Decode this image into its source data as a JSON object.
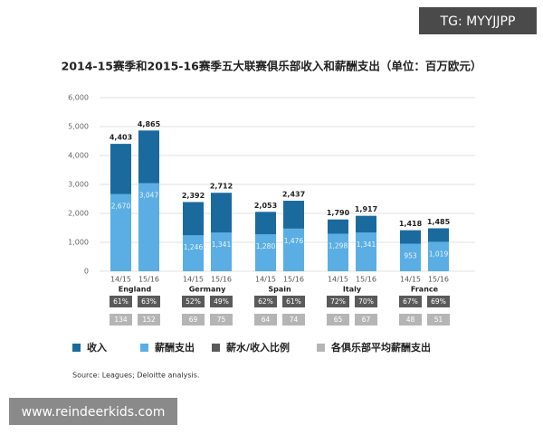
{
  "chart_data": {
    "type": "bar",
    "title": "2014-15赛季和2015-16赛季五大联赛俱乐部收入和薪酬支出（单位：百万欧元）",
    "categories": [
      "14/15",
      "15/16",
      "14/15",
      "15/16",
      "14/15",
      "15/16",
      "14/15",
      "15/16",
      "14/15",
      "15/16"
    ],
    "groups": [
      "England",
      "Germany",
      "Spain",
      "Italy",
      "France"
    ],
    "series": [
      {
        "name": "收入",
        "color": "#1b6a9e",
        "type": "bar",
        "values": [
          4403,
          4865,
          2392,
          2712,
          2053,
          2437,
          1790,
          1917,
          1418,
          1485
        ],
        "value_labels": [
          "4,403",
          "4,865",
          "2,392",
          "2,712",
          "2,053",
          "2,437",
          "1,790",
          "1,917",
          "1,418",
          "1,485"
        ]
      },
      {
        "name": "薪酬支出",
        "color": "#5aaee3",
        "type": "bar",
        "values": [
          2670,
          3047,
          1246,
          1341,
          1280,
          1476,
          1298,
          1341,
          953,
          1019
        ],
        "value_labels": [
          "2,670",
          "3,047",
          "1,246",
          "1,341",
          "1,280",
          "1,476",
          "1,298",
          "1,341",
          "953",
          "1,019"
        ]
      },
      {
        "name": "薪水/收入比例",
        "color": "#5a5a5a",
        "type": "table",
        "values": [
          61,
          63,
          52,
          49,
          62,
          61,
          72,
          70,
          67,
          69
        ],
        "value_labels": [
          "61%",
          "63%",
          "52%",
          "49%",
          "62%",
          "61%",
          "72%",
          "70%",
          "67%",
          "69%"
        ]
      },
      {
        "name": "各俱乐部平均薪酬支出",
        "color": "#b5b5b5",
        "type": "table",
        "values": [
          134,
          152,
          69,
          75,
          64,
          74,
          65,
          67,
          48,
          51
        ]
      }
    ],
    "ylim": [
      0,
      6000
    ],
    "yticks": [
      0,
      {
        "value": 1000,
        "label": "1,000"
      },
      {
        "value": 2000,
        "label": "2,000"
      },
      {
        "value": 3000,
        "label": "3,000"
      },
      {
        "value": 4000,
        "label": "4,000"
      },
      {
        "value": 5000,
        "label": "5,000"
      },
      {
        "value": 6000,
        "label": "6,000"
      }
    ],
    "grid": true,
    "source": "Source: Leagues; Deloitte analysis.",
    "watermarks": [
      "TG: MYYJJPP",
      "www.reindeerkids.com"
    ]
  }
}
